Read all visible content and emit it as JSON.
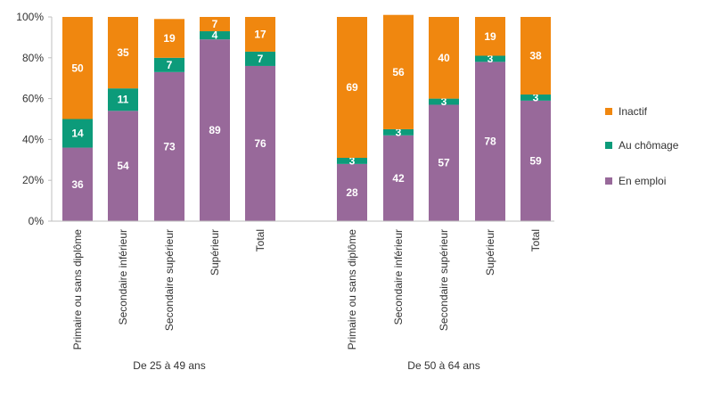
{
  "chart_data": {
    "type": "bar",
    "stacked": true,
    "y_axis": {
      "ylim": [
        0,
        100
      ],
      "ticks": [
        "0%",
        "20%",
        "40%",
        "60%",
        "80%",
        "100%"
      ]
    },
    "groups": [
      {
        "label": "De 25 à 49 ans",
        "categories": [
          "Primaire ou sans diplôme",
          "Secondaire inférieur",
          "Secondaire supérieur",
          "Supérieur",
          "Total"
        ]
      },
      {
        "label": "De 50 à 64 ans",
        "categories": [
          "Primaire ou sans diplôme",
          "Secondaire inférieur",
          "Secondaire supérieur",
          "Supérieur",
          "Total"
        ]
      }
    ],
    "series": [
      {
        "name": "En emploi",
        "color": "#98699a",
        "values": [
          36,
          54,
          73,
          89,
          76,
          28,
          42,
          57,
          78,
          59
        ]
      },
      {
        "name": "Au chômage",
        "color": "#0c9b7a",
        "values": [
          14,
          11,
          7,
          4,
          7,
          3,
          3,
          3,
          3,
          3
        ]
      },
      {
        "name": "Inactif",
        "color": "#f0870f",
        "values": [
          50,
          35,
          19,
          7,
          17,
          69,
          56,
          40,
          19,
          38
        ]
      }
    ],
    "legend": {
      "position": "right",
      "order": [
        "Inactif",
        "Au chômage",
        "En emploi"
      ]
    },
    "grid": false
  }
}
